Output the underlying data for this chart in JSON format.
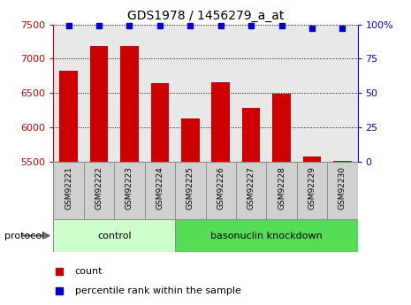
{
  "title": "GDS1978 / 1456279_a_at",
  "samples": [
    "GSM92221",
    "GSM92222",
    "GSM92223",
    "GSM92224",
    "GSM92225",
    "GSM92226",
    "GSM92227",
    "GSM92228",
    "GSM92229",
    "GSM92230"
  ],
  "counts": [
    6820,
    7180,
    7180,
    6650,
    6130,
    6660,
    6280,
    6490,
    5580,
    5510
  ],
  "percentiles": [
    99,
    99,
    99,
    99,
    99,
    99,
    99,
    99,
    97,
    97
  ],
  "ylim_left": [
    5500,
    7500
  ],
  "ylim_right": [
    0,
    100
  ],
  "yticks_left": [
    5500,
    6000,
    6500,
    7000,
    7500
  ],
  "yticks_right": [
    0,
    25,
    50,
    75,
    100
  ],
  "bar_color": "#cc0000",
  "marker_color": "#0000cc",
  "bar_width": 0.6,
  "bg_color": "#e8e8e8",
  "control_label": "control",
  "knockdown_label": "basonuclin knockdown",
  "protocol_label": "protocol",
  "n_control": 4,
  "n_knockdown": 6,
  "legend_count_label": "count",
  "legend_pct_label": "percentile rank within the sample",
  "control_color": "#ccffcc",
  "knockdown_color": "#55dd55",
  "title_color": "#000000",
  "left_tick_color": "#cc0000",
  "right_tick_color": "#0000cc",
  "sample_box_color": "#d0d0d0",
  "sample_box_edge": "#888888"
}
